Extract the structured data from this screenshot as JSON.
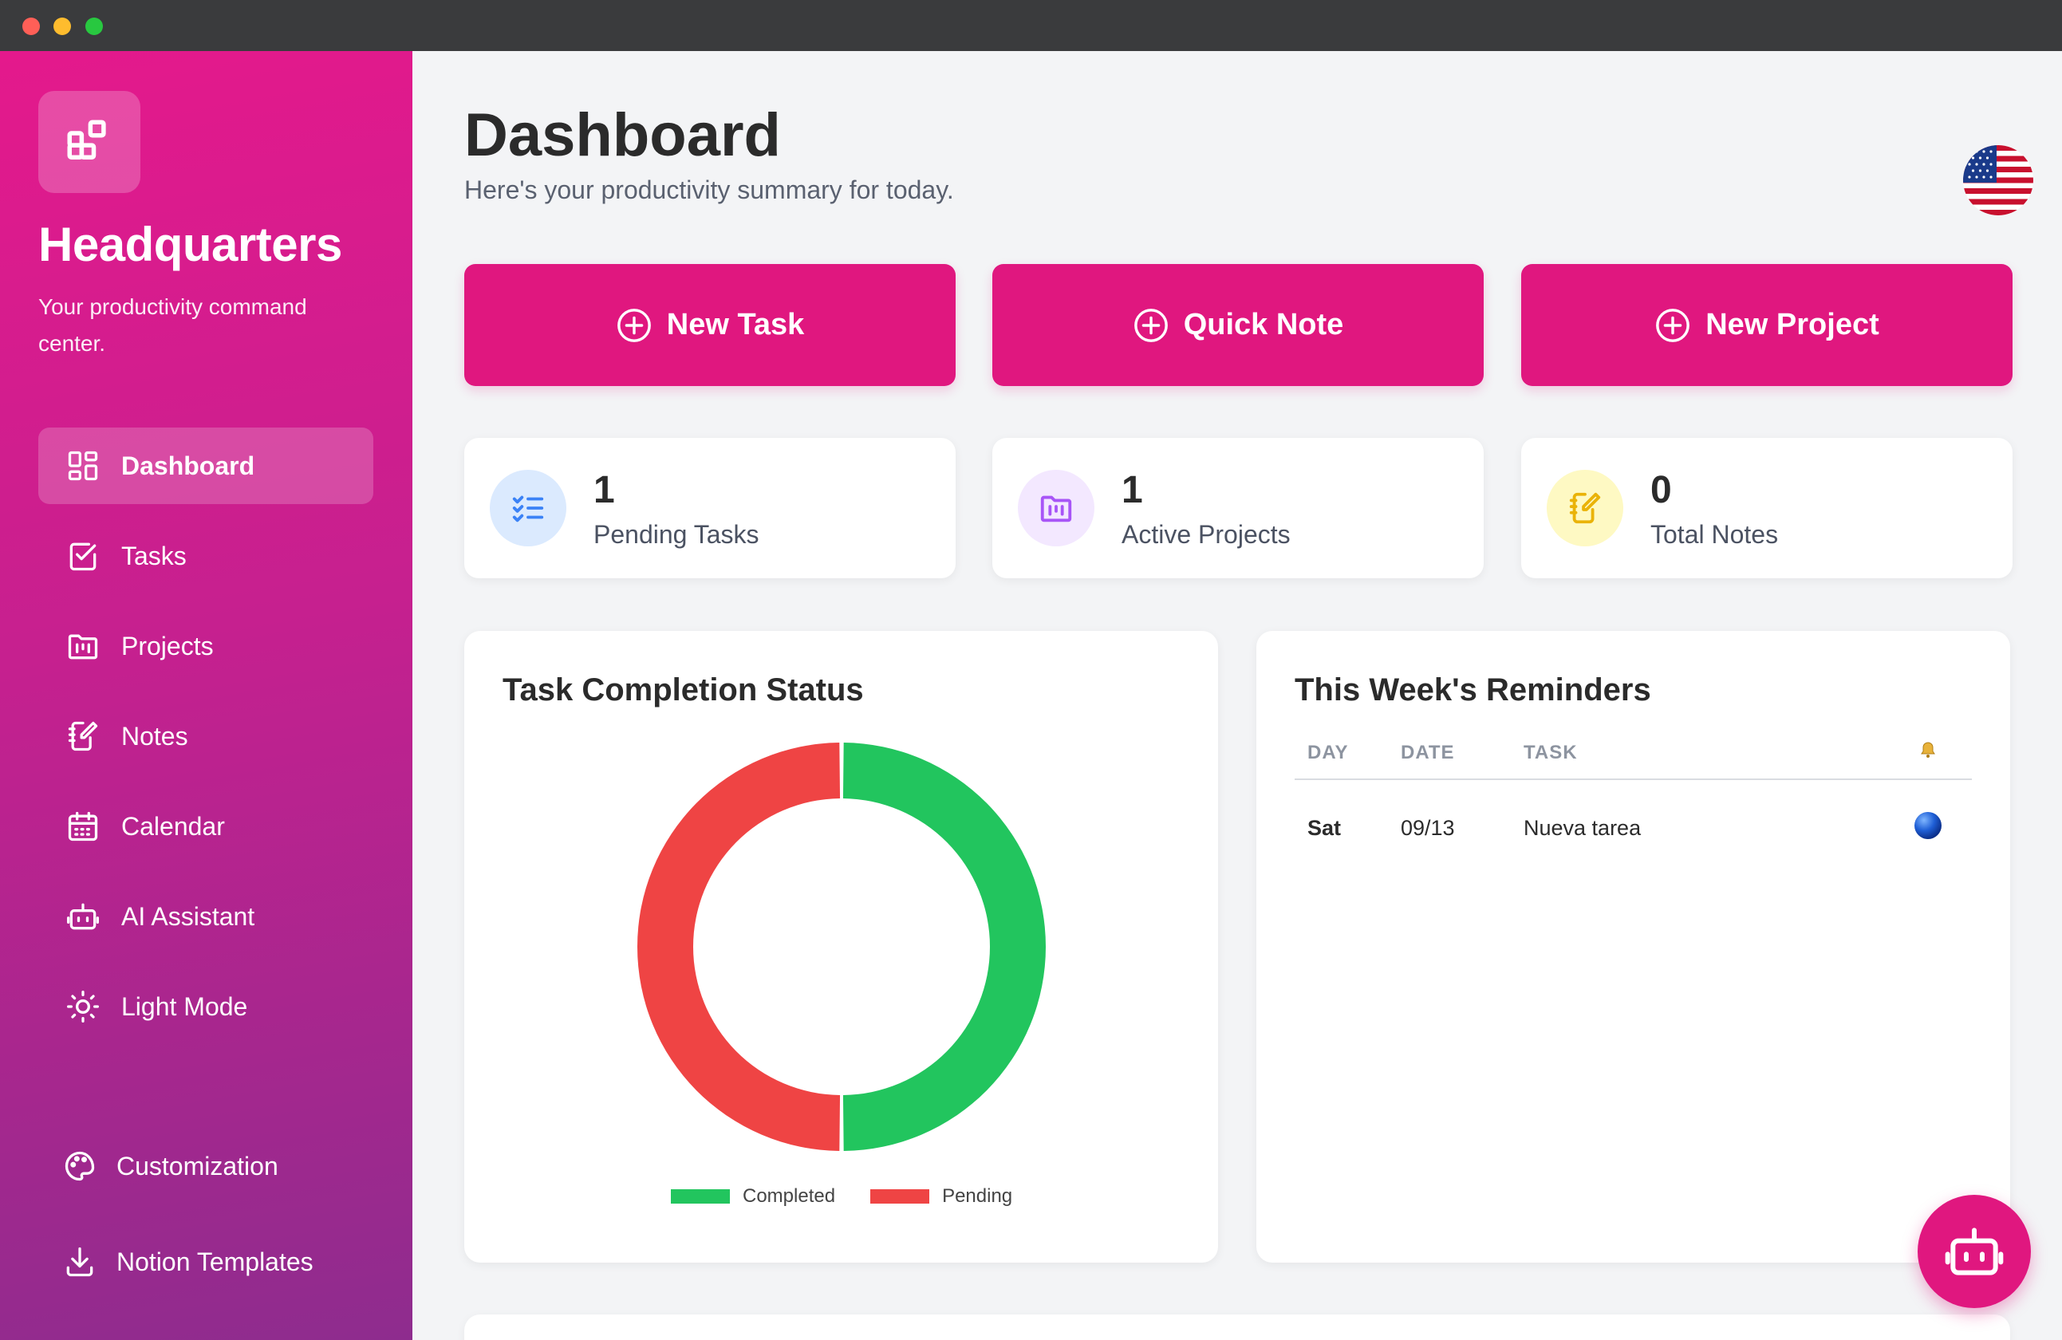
{
  "sidebar": {
    "brand": "Headquarters",
    "tagline": "Your productivity command center.",
    "nav": [
      {
        "label": "Dashboard",
        "icon": "dashboard-icon",
        "active": true
      },
      {
        "label": "Tasks",
        "icon": "checkbox-icon"
      },
      {
        "label": "Projects",
        "icon": "folder-icon"
      },
      {
        "label": "Notes",
        "icon": "notes-icon"
      },
      {
        "label": "Calendar",
        "icon": "calendar-icon"
      },
      {
        "label": "AI Assistant",
        "icon": "robot-icon"
      },
      {
        "label": "Light Mode",
        "icon": "sun-icon"
      }
    ],
    "bottom": [
      {
        "label": "Customization",
        "icon": "palette-icon"
      },
      {
        "label": "Notion Templates",
        "icon": "download-icon"
      }
    ]
  },
  "header": {
    "title": "Dashboard",
    "subtitle": "Here's your productivity summary for today.",
    "language_icon": "us-flag-icon"
  },
  "actions": [
    {
      "label": "New Task",
      "icon": "plus-circle-icon"
    },
    {
      "label": "Quick Note",
      "icon": "plus-circle-icon"
    },
    {
      "label": "New Project",
      "icon": "plus-circle-icon"
    }
  ],
  "stats": [
    {
      "value": "1",
      "label": "Pending Tasks",
      "icon": "list-check-icon",
      "color": "#3b82f6",
      "bg": "#dbeafe"
    },
    {
      "value": "1",
      "label": "Active Projects",
      "icon": "folder-chart-icon",
      "color": "#a855f7",
      "bg": "#f3e8ff"
    },
    {
      "value": "0",
      "label": "Total Notes",
      "icon": "note-pencil-icon",
      "color": "#eab308",
      "bg": "#fef9c3"
    }
  ],
  "completion_card": {
    "title": "Task Completion Status"
  },
  "chart_data": {
    "type": "pie",
    "donut": true,
    "categories": [
      "Completed",
      "Pending"
    ],
    "values": [
      1,
      1
    ],
    "colors": [
      "#22c55e",
      "#ef4444"
    ],
    "legend": "bottom"
  },
  "reminders": {
    "title": "This Week's Reminders",
    "columns": [
      "DAY",
      "DATE",
      "TASK"
    ],
    "bell_icon": "bell-icon",
    "rows": [
      {
        "day": "Sat",
        "date": "09/13",
        "task": "Nueva tarea",
        "status_icon": "blue-circle-icon"
      }
    ]
  },
  "fab": {
    "icon": "robot-icon"
  },
  "colors": {
    "accent": "#e0177f",
    "completed": "#22c55e",
    "pending": "#ef4444"
  }
}
